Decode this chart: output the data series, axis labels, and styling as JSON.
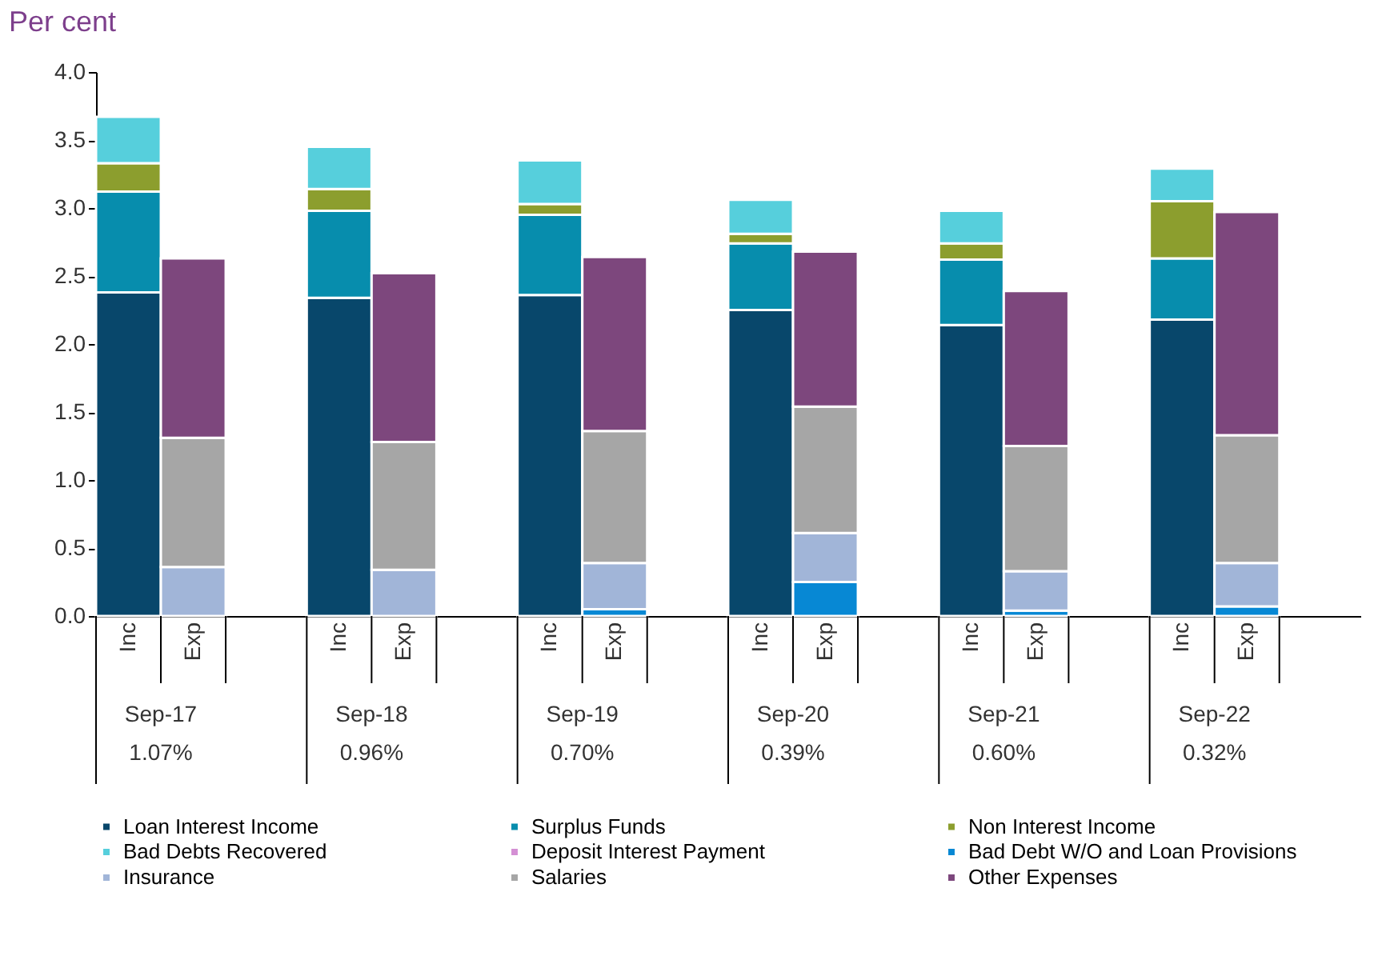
{
  "chart_data": {
    "type": "bar",
    "stacked": true,
    "ylabel": "Per cent",
    "categories": [
      "Inc",
      "Exp",
      "Inc",
      "Exp",
      "Inc",
      "Exp",
      "Inc",
      "Exp",
      "Inc",
      "Exp",
      "Inc",
      "Exp"
    ],
    "annotations": [
      "Sep-17",
      "Sep-18",
      "Sep-19",
      "Sep-20",
      "Sep-21",
      "Sep-22",
      "1.07%",
      "0.96%",
      "0.70%",
      "0.39%",
      "0.60%",
      "0.32%"
    ],
    "series": [
      {
        "name": "Loan Interest Income",
        "color": "#08476b",
        "values": [
          2.38,
          null,
          2.34,
          null,
          2.36,
          null,
          2.25,
          null,
          2.14,
          null,
          2.18,
          null
        ]
      },
      {
        "name": "Surplus Funds",
        "color": "#078dad",
        "values": [
          0.74,
          null,
          0.64,
          null,
          0.59,
          null,
          0.49,
          null,
          0.48,
          null,
          0.45,
          null
        ]
      },
      {
        "name": "Non Interest Income",
        "color": "#8c9e2e",
        "values": [
          0.21,
          null,
          0.16,
          null,
          0.08,
          null,
          0.07,
          null,
          0.12,
          null,
          0.42,
          null
        ]
      },
      {
        "name": "Bad Debts Recovered",
        "color": "#56cfdc",
        "values": [
          0.34,
          null,
          0.31,
          null,
          0.32,
          null,
          0.25,
          null,
          0.24,
          null,
          0.24,
          null
        ]
      },
      {
        "name": "Deposit Interest Payment",
        "color": "#d48fd4",
        "values": [
          null,
          null,
          null,
          null,
          null,
          null,
          null,
          null,
          null,
          null,
          null,
          null
        ]
      },
      {
        "name": "Bad Debt W/O and Loan Provisions",
        "color": "#0788d4",
        "values": [
          null,
          null,
          null,
          null,
          null,
          0.05,
          null,
          0.25,
          null,
          0.04,
          null,
          0.07
        ]
      },
      {
        "name": "Insurance",
        "color": "#a1b5d8",
        "values": [
          null,
          0.36,
          null,
          0.34,
          null,
          0.34,
          null,
          0.36,
          null,
          0.29,
          null,
          0.32
        ]
      },
      {
        "name": "Salaries",
        "color": "#a6a6a6",
        "values": [
          null,
          0.95,
          null,
          0.94,
          null,
          0.97,
          null,
          0.93,
          null,
          0.92,
          null,
          0.94
        ]
      },
      {
        "name": "Other Expenses",
        "color": "#7d477d",
        "values": [
          null,
          1.32,
          null,
          1.24,
          null,
          1.28,
          null,
          1.14,
          null,
          1.14,
          null,
          1.64
        ]
      }
    ],
    "ylim": [
      0,
      4
    ],
    "yticks": [
      {
        "value": 0,
        "label": "0.0"
      },
      {
        "value": 0.5,
        "label": "0.5"
      },
      {
        "value": 1,
        "label": "1.0"
      },
      {
        "value": 1.5,
        "label": "1.5"
      },
      {
        "value": 2,
        "label": "2.0"
      },
      {
        "value": 2.5,
        "label": "2.5"
      },
      {
        "value": 3,
        "label": "3.0"
      },
      {
        "value": 3.5,
        "label": "3.5"
      },
      {
        "value": 4,
        "label": "4.0"
      }
    ],
    "grid": false,
    "legend": "bottom"
  }
}
